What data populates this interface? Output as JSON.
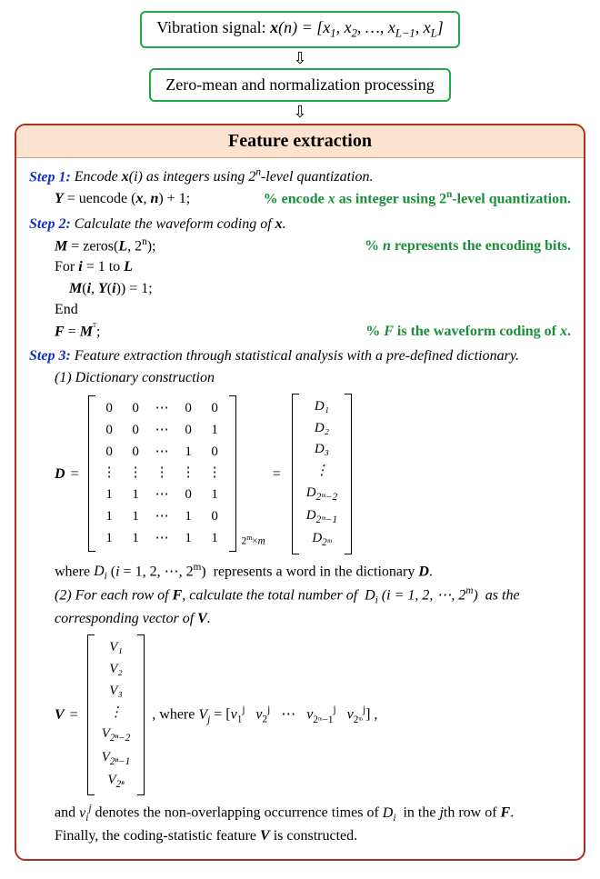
{
  "flow": {
    "box1_prefix": "Vibration signal: ",
    "box1_math": "x(n) = [x₁, x₂, …, x_{L−1}, x_L]",
    "box2": "Zero-mean and normalization processing"
  },
  "panel": {
    "title": "Feature extraction"
  },
  "step1": {
    "label": "Step 1:",
    "text": " Encode x(i) as integers using 2ⁿ-level quantization.",
    "code": "Y = uencode (x, n) + 1;",
    "comment": "% encode x as integer using 2ⁿ-level quantization."
  },
  "step2": {
    "label": "Step 2:",
    "text": " Calculate the waveform coding of x.",
    "l1": "M = zeros(L, 2ⁿ);",
    "c1": "% n represents the encoding bits.",
    "l2": "For i = 1 to L",
    "l3": "M(i, Y(i)) = 1;",
    "l4": "End",
    "l5": "F = Mᵀ;",
    "c5": "% F is the waveform coding  of x."
  },
  "step3": {
    "label": "Step 3:",
    "text": " Feature extraction through statistical analysis with a pre-defined dictionary.",
    "sub1": "(1) Dictionary construction",
    "D_rows": [
      [
        "0",
        "0",
        "⋯",
        "0",
        "0"
      ],
      [
        "0",
        "0",
        "⋯",
        "0",
        "1"
      ],
      [
        "0",
        "0",
        "⋯",
        "1",
        "0"
      ],
      [
        "⋮",
        "⋮",
        "⋮",
        "⋮",
        "⋮"
      ],
      [
        "1",
        "1",
        "⋯",
        "0",
        "1"
      ],
      [
        "1",
        "1",
        "⋯",
        "1",
        "0"
      ],
      [
        "1",
        "1",
        "⋯",
        "1",
        "1"
      ]
    ],
    "D_dim": "2ᵐ×m",
    "D_vec": [
      "D₁",
      "D₂",
      "D₃",
      "⋮",
      "D_{2ᵐ−2}",
      "D_{2ᵐ−1}",
      "D_{2ᵐ}"
    ],
    "where_d": "where Dᵢ (i = 1, 2, ⋯, 2ᵐ)  represents a word in the dictionary D.",
    "sub2a": "(2) For each row of F, calculate the total number of  Dᵢ (i = 1, 2, ⋯, 2ᵐ)  as the",
    "sub2b": "corresponding vector of V.",
    "V_vec": [
      "V₁",
      "V₂",
      "V₃",
      "⋮",
      "V_{2ⁿ−2}",
      "V_{2ⁿ−1}",
      "V_{2ⁿ}"
    ],
    "V_where": ", where Vⱼ = [v₁ʲ   v₂ʲ   ⋯   v_{2ᵐ−1}ʲ   v_{2ᵐ}ʲ] ,",
    "tail1": "and vᵢʲ denotes the non-overlapping occurrence times of Dᵢ  in the jth row of F.",
    "tail2": "Finally, the coding-statistic feature V is constructed."
  },
  "style": {
    "accent_green": "#1fa84a",
    "accent_red": "#b03020",
    "header_bg": "#fbe3cf",
    "step_blue": "#1030c0",
    "comment_green": "#1b8f3a"
  }
}
